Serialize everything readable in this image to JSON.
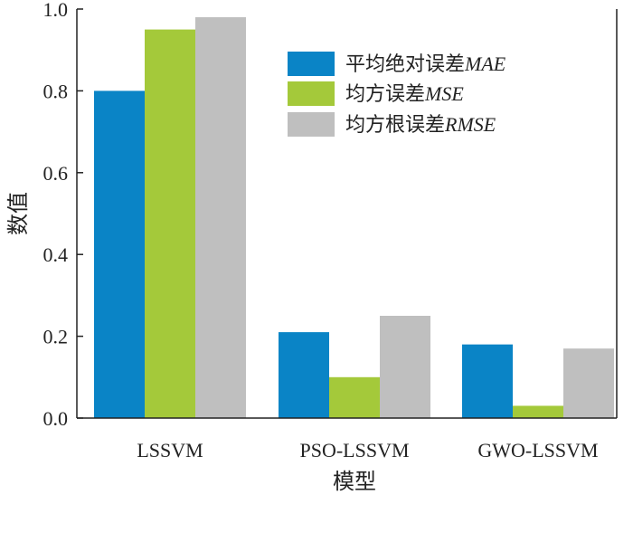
{
  "chart_data": {
    "type": "bar",
    "categories": [
      "LSSVM",
      "PSO-LSSVM",
      "GWO-LSSVM"
    ],
    "series": [
      {
        "name": "平均绝对误差MAE",
        "label_cn": "平均绝对误差",
        "label_abbr": "MAE",
        "color": "#0a84c6",
        "values": [
          0.8,
          0.21,
          0.18
        ]
      },
      {
        "name": "均方误差MSE",
        "label_cn": "均方误差",
        "label_abbr": "MSE",
        "color": "#a4c93a",
        "values": [
          0.95,
          0.1,
          0.03
        ]
      },
      {
        "name": "均方根误差RMSE",
        "label_cn": "均方根误差",
        "label_abbr": "RMSE",
        "color": "#bfbfbf",
        "values": [
          0.98,
          0.25,
          0.17
        ]
      }
    ],
    "xlabel": "模型",
    "ylabel": "数值",
    "ylim": [
      0,
      1.0
    ],
    "yticks": [
      "0.0",
      "0.2",
      "0.4",
      "0.6",
      "0.8",
      "1.0"
    ],
    "grid": false,
    "legend_position": "top-right"
  }
}
